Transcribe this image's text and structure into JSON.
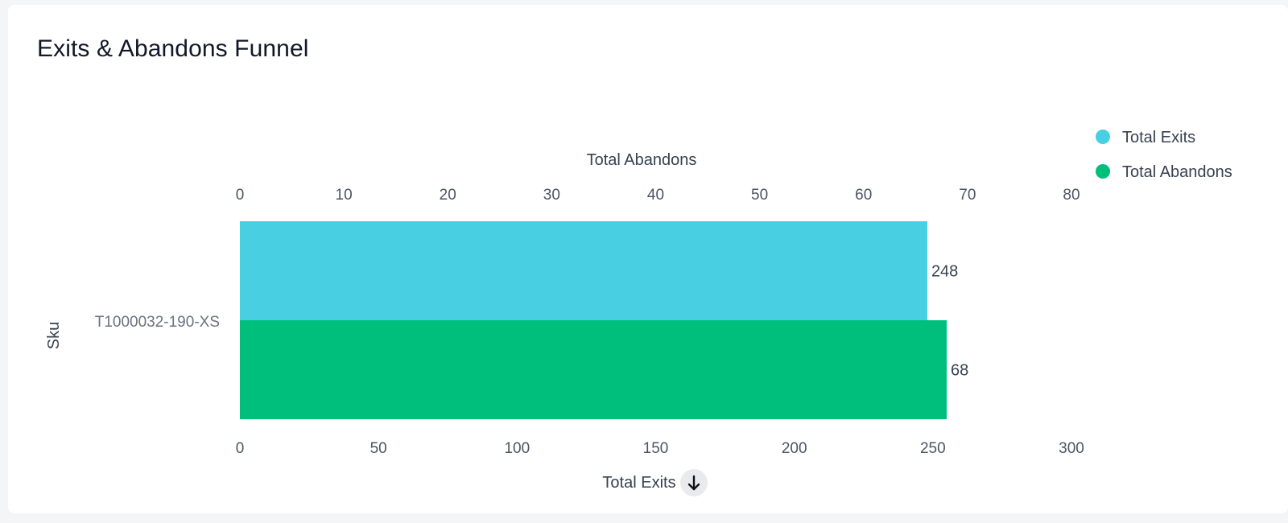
{
  "card": {
    "title": "Exits & Abandons Funnel"
  },
  "chart_data": {
    "type": "bar",
    "orientation": "horizontal",
    "categories": [
      "T1000032-190-XS"
    ],
    "series": [
      {
        "name": "Total Exits",
        "values": [
          248
        ],
        "color": "#48CFE2",
        "axis": "bottom"
      },
      {
        "name": "Total Abandons",
        "values": [
          68
        ],
        "color": "#00BF7D",
        "axis": "top"
      }
    ],
    "y_axis_label": "Sku",
    "x_axis_bottom": {
      "label": "Total Exits",
      "range": [
        0,
        300
      ],
      "ticks": [
        0,
        50,
        100,
        150,
        200,
        250,
        300
      ],
      "sort_icon": "arrow-down-icon"
    },
    "x_axis_top": {
      "label": "Total Abandons",
      "range": [
        0,
        80
      ],
      "ticks": [
        0,
        10,
        20,
        30,
        40,
        50,
        60,
        70,
        80
      ]
    },
    "legend_position": "top-right",
    "grid": false
  }
}
